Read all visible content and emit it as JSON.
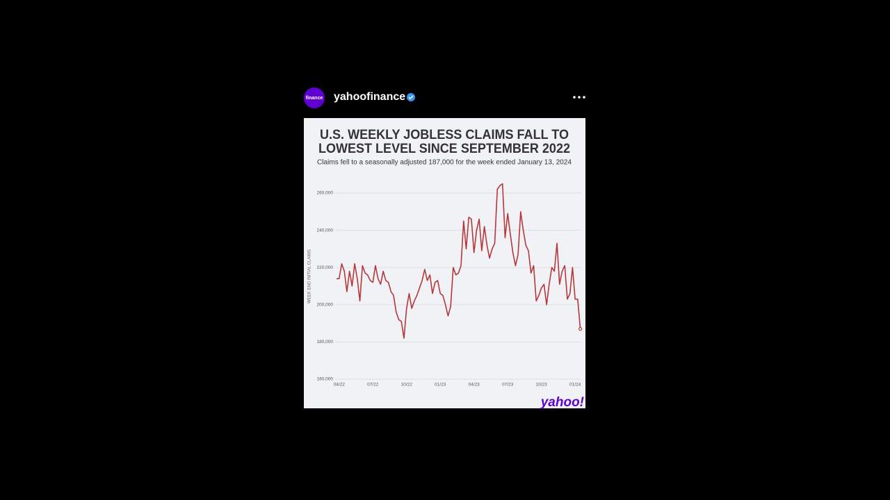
{
  "header": {
    "account": "yahoofinance",
    "avatar_text": "finance"
  },
  "chart_data": {
    "type": "line",
    "title": [
      "U.S. WEEKLY JOBLESS CLAIMS FALL TO",
      "LOWEST LEVEL SINCE SEPTEMBER 2022"
    ],
    "subtitle": "Claims fell to a seasonally adjusted 187,000 for the week ended January 13, 2024",
    "y_label": "WEEK END INITIAL CLAIMS",
    "logo_text": "yahoo!",
    "x": [
      0,
      1,
      2,
      3,
      4,
      5,
      6,
      7,
      8,
      9,
      10,
      11,
      12,
      13,
      14,
      15,
      16,
      17,
      18,
      19,
      20,
      21,
      22,
      23,
      24,
      25,
      26,
      27,
      28,
      29,
      30,
      31,
      32,
      33,
      34,
      35,
      36,
      37,
      38,
      39,
      40,
      41,
      42,
      43,
      44,
      45,
      46,
      47,
      48,
      49,
      50,
      51,
      52,
      53,
      54,
      55,
      56,
      57,
      58,
      59,
      60,
      61,
      62,
      63,
      64,
      65,
      66,
      67,
      68,
      69,
      70,
      71,
      72,
      73,
      74,
      75,
      76,
      77,
      78,
      79,
      80,
      81,
      82,
      83,
      84,
      85,
      86,
      87,
      88,
      89,
      90,
      91,
      92,
      93,
      94
    ],
    "series": [
      {
        "name": "Initial claims",
        "color": "#b5373a",
        "values": [
          214000,
          214000,
          222000,
          218000,
          207000,
          218000,
          210000,
          222000,
          214000,
          202000,
          221000,
          217000,
          216000,
          213000,
          212000,
          221000,
          214000,
          211000,
          218000,
          213000,
          212000,
          207000,
          205000,
          196000,
          192000,
          191000,
          182000,
          198000,
          206000,
          198000,
          202000,
          205000,
          209000,
          213000,
          219000,
          213000,
          216000,
          206000,
          212000,
          213000,
          206000,
          205000,
          200000,
          194000,
          199000,
          220000,
          216000,
          217000,
          221000,
          245000,
          230000,
          247000,
          246000,
          228000,
          240000,
          246000,
          229000,
          242000,
          232000,
          225000,
          230000,
          233000,
          262000,
          264000,
          265000,
          236000,
          249000,
          238000,
          228000,
          221000,
          227000,
          250000,
          240000,
          232000,
          229000,
          217000,
          221000,
          202000,
          205000,
          209000,
          211000,
          200000,
          211000,
          220000,
          218000,
          233000,
          211000,
          218000,
          221000,
          203000,
          206000,
          220000,
          203000,
          203000,
          187000
        ]
      }
    ],
    "xlim": [
      0,
      94
    ],
    "xticks": [
      {
        "value": 1,
        "label": "04/22"
      },
      {
        "value": 14,
        "label": "07/22"
      },
      {
        "value": 27,
        "label": "10/22"
      },
      {
        "value": 40,
        "label": "01/23"
      },
      {
        "value": 53,
        "label": "04/23"
      },
      {
        "value": 66,
        "label": "07/23"
      },
      {
        "value": 79,
        "label": "10/23"
      },
      {
        "value": 92,
        "label": "01/24"
      }
    ],
    "ylim": [
      160000,
      260000
    ],
    "yticks": [
      {
        "value": 160000,
        "label": "160,000"
      },
      {
        "value": 180000,
        "label": "180,000"
      },
      {
        "value": 200000,
        "label": "200,000"
      },
      {
        "value": 220000,
        "label": "220,000"
      },
      {
        "value": 240000,
        "label": "240,000"
      },
      {
        "value": 260000,
        "label": "260,000"
      }
    ],
    "grid": true
  }
}
